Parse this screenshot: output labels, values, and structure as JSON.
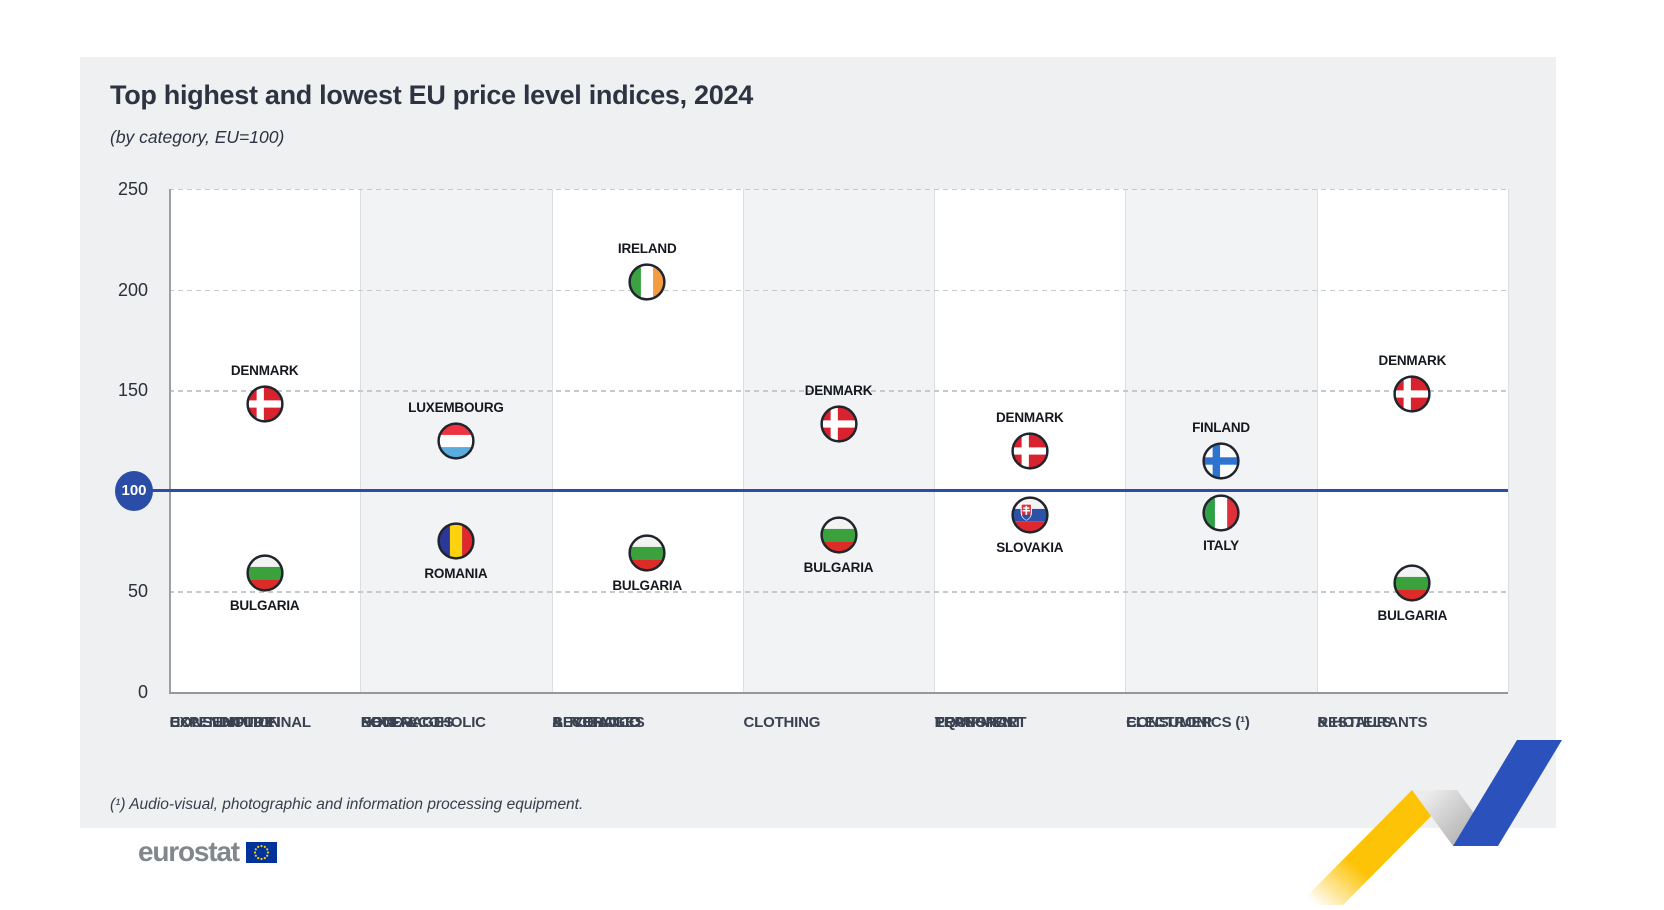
{
  "page": {
    "title": "Top highest and lowest EU price level indices, 2024",
    "subtitle": "(by category, EU=100)",
    "footnote": "(¹) Audio-visual, photographic and information processing equipment.",
    "logo_text": "eurostat"
  },
  "colors": {
    "accent_blue": "#2b4da8",
    "title_text": "#2d3340",
    "card_bg": "#eef0f1",
    "band_plain": "#ffffff",
    "band_shaded": "#f2f3f4",
    "band_divider": "#dcdee0",
    "grid_dash": "#c6cacd",
    "axis_line": "#9ba0a5",
    "country_text": "#15181f",
    "category_text": "#3a4150",
    "logo_gray": "#82878c",
    "eu_flag_blue": "#003399",
    "eu_star_yellow": "#ffcc00",
    "ribbon_yellow": "#fdc306",
    "ribbon_blue": "#2b51bd"
  },
  "chart_data": {
    "type": "scatter",
    "title": "Top highest and lowest EU price level indices, 2024",
    "subtitle": "(by category, EU=100)",
    "ylim": [
      0,
      250
    ],
    "yticks": [
      0,
      50,
      100,
      150,
      200,
      250
    ],
    "grid": "dashed horizontal gridlines, alternating shaded category bands",
    "baseline": {
      "value": 100,
      "label": "100"
    },
    "categories": [
      {
        "label_lines": [
          "HOUSEHOLD FINAL",
          "CONSUMPTION",
          "EXPENDITURE"
        ],
        "high": {
          "country": "DENMARK",
          "value": 143,
          "flag": "denmark"
        },
        "low": {
          "country": "BULGARIA",
          "value": 59,
          "flag": "bulgaria"
        }
      },
      {
        "label_lines": [
          "FOOD &",
          "NON-ALCOHOLIC",
          "BEVERAGES"
        ],
        "high": {
          "country": "LUXEMBOURG",
          "value": 125,
          "flag": "luxembourg"
        },
        "low": {
          "country": "ROMANIA",
          "value": 75,
          "flag": "romania"
        }
      },
      {
        "label_lines": [
          "ALCOHOLIC",
          "BEVERAGES",
          "& TOBACCO"
        ],
        "high": {
          "country": "IRELAND",
          "value": 204,
          "flag": "ireland"
        },
        "low": {
          "country": "BULGARIA",
          "value": 69,
          "flag": "bulgaria"
        }
      },
      {
        "label_lines": [
          "CLOTHING"
        ],
        "high": {
          "country": "DENMARK",
          "value": 133,
          "flag": "denmark"
        },
        "low": {
          "country": "BULGARIA",
          "value": 78,
          "flag": "bulgaria"
        }
      },
      {
        "label_lines": [
          "PERSONAL",
          "TRANSPORT",
          "EQUIPMENT"
        ],
        "high": {
          "country": "DENMARK",
          "value": 120,
          "flag": "denmark"
        },
        "low": {
          "country": "SLOVAKIA",
          "value": 88,
          "flag": "slovakia"
        }
      },
      {
        "label_lines": [
          "CONSUMER",
          "ELECTRONICS (¹)"
        ],
        "high": {
          "country": "FINLAND",
          "value": 115,
          "flag": "finland"
        },
        "low": {
          "country": "ITALY",
          "value": 89,
          "flag": "italy"
        }
      },
      {
        "label_lines": [
          "RESTAURANTS",
          "& HOTELS"
        ],
        "high": {
          "country": "DENMARK",
          "value": 148,
          "flag": "denmark"
        },
        "low": {
          "country": "BULGARIA",
          "value": 54,
          "flag": "bulgaria"
        }
      }
    ]
  }
}
